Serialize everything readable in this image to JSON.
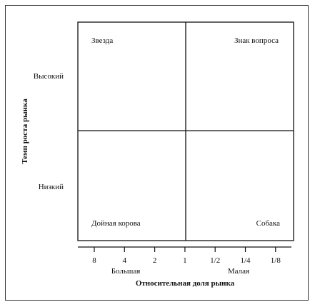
{
  "quadrants": {
    "top_left": "Звезда",
    "top_right": "Знак вопроса",
    "bottom_left": "Дойная корова",
    "bottom_right": "Собака"
  },
  "y_axis": {
    "title": "Темп роста рынка",
    "high": "Высокий",
    "low": "Низкий"
  },
  "x_axis": {
    "title": "Относительная доля рынка",
    "ticks": [
      "8",
      "4",
      "2",
      "1",
      "1/2",
      "1/4",
      "1/8"
    ],
    "left_label": "Большая",
    "right_label": "Малая"
  },
  "colors": {
    "line": "#111111",
    "frame": "#333333"
  }
}
